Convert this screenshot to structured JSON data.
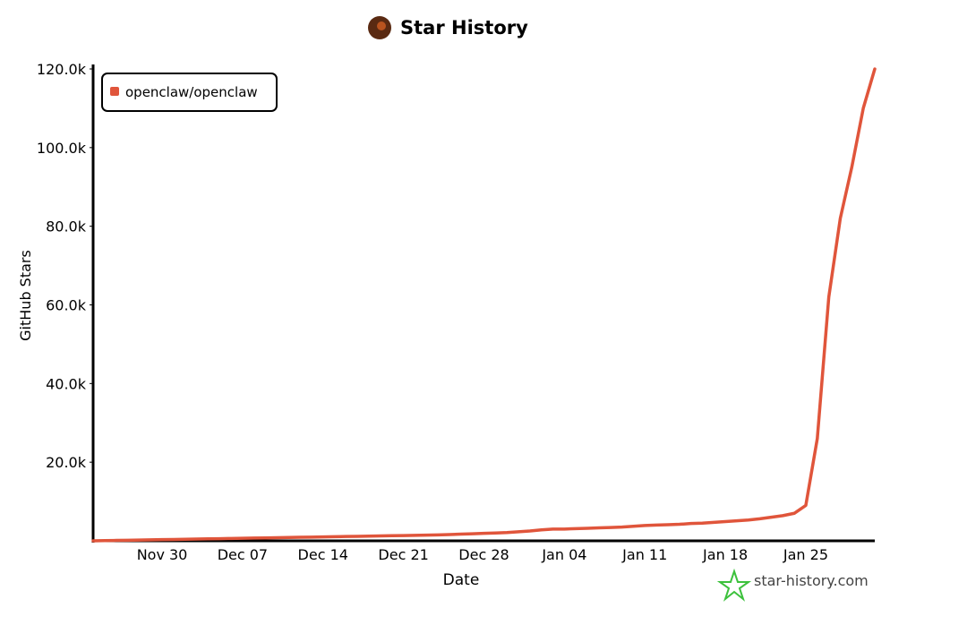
{
  "chart_data": {
    "type": "line",
    "title": "Star History",
    "x_label": "Date",
    "y_label": "GitHub Stars",
    "watermark": "star-history.com",
    "x": [
      "Nov 24",
      "Nov 25",
      "Nov 26",
      "Nov 27",
      "Nov 28",
      "Nov 29",
      "Nov 30",
      "Dec 01",
      "Dec 02",
      "Dec 03",
      "Dec 04",
      "Dec 05",
      "Dec 06",
      "Dec 07",
      "Dec 08",
      "Dec 09",
      "Dec 10",
      "Dec 11",
      "Dec 12",
      "Dec 13",
      "Dec 14",
      "Dec 15",
      "Dec 16",
      "Dec 17",
      "Dec 18",
      "Dec 19",
      "Dec 20",
      "Dec 21",
      "Dec 22",
      "Dec 23",
      "Dec 24",
      "Dec 25",
      "Dec 26",
      "Dec 27",
      "Dec 28",
      "Dec 29",
      "Dec 30",
      "Dec 31",
      "Jan 01",
      "Jan 02",
      "Jan 03",
      "Jan 04",
      "Jan 05",
      "Jan 06",
      "Jan 07",
      "Jan 08",
      "Jan 09",
      "Jan 10",
      "Jan 11",
      "Jan 12",
      "Jan 13",
      "Jan 14",
      "Jan 15",
      "Jan 16",
      "Jan 17",
      "Jan 18",
      "Jan 19",
      "Jan 20",
      "Jan 21",
      "Jan 22",
      "Jan 23",
      "Jan 24",
      "Jan 25",
      "Jan 26",
      "Jan 27",
      "Jan 28",
      "Jan 29",
      "Jan 30",
      "Jan 31"
    ],
    "series": [
      {
        "name": "openclaw/openclaw",
        "color": "#e0553b",
        "values": [
          0,
          50,
          100,
          150,
          200,
          250,
          300,
          350,
          400,
          450,
          500,
          550,
          600,
          650,
          700,
          750,
          800,
          850,
          900,
          950,
          1000,
          1050,
          1100,
          1150,
          1200,
          1250,
          1300,
          1350,
          1400,
          1450,
          1500,
          1600,
          1700,
          1800,
          1900,
          2000,
          2100,
          2300,
          2500,
          2800,
          3000,
          3000,
          3100,
          3200,
          3300,
          3400,
          3500,
          3700,
          3900,
          4000,
          4100,
          4200,
          4400,
          4500,
          4700,
          4900,
          5100,
          5300,
          5600,
          6000,
          6400,
          7000,
          9000,
          26000,
          62000,
          82000,
          95000,
          110000,
          120000
        ]
      }
    ],
    "xticks": [
      "Nov 30",
      "Dec 07",
      "Dec 14",
      "Dec 21",
      "Dec 28",
      "Jan 04",
      "Jan 11",
      "Jan 18",
      "Jan 25"
    ],
    "ylim": [
      0,
      120000
    ],
    "yticks": [
      {
        "value": 20000,
        "label": "20.0k"
      },
      {
        "value": 40000,
        "label": "40.0k"
      },
      {
        "value": 60000,
        "label": "60.0k"
      },
      {
        "value": 80000,
        "label": "80.0k"
      },
      {
        "value": 100000,
        "label": "100.0k"
      },
      {
        "value": 120000,
        "label": "120.0k"
      }
    ],
    "legend": "top-left"
  }
}
